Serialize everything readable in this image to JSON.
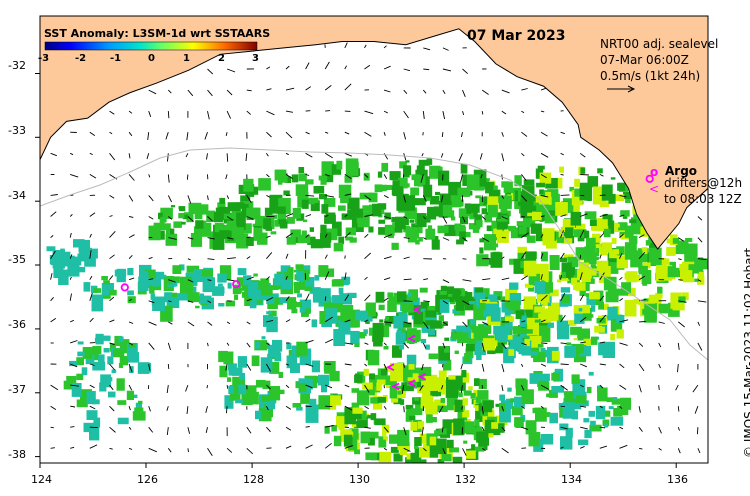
{
  "date": "07 Mar 2023",
  "title": "SST Anomaly: L3SM-1d wrt SSTAARS",
  "colorbar_ticks": [
    "-3",
    "-2",
    "-1",
    "0",
    "1",
    "2",
    "3"
  ],
  "colorbar_colors": [
    "#00007f",
    "#0000ff",
    "#0066ff",
    "#00ccff",
    "#33ffcc",
    "#99ff66",
    "#ffff00",
    "#ff9900",
    "#ff3300",
    "#7f0000"
  ],
  "legend": {
    "current_title": "NRT00 adj. sealevel",
    "current_time": "07-Mar 06:00Z",
    "current_scale": "0.5m/s (1kt 24h)",
    "argo_symbol": "o",
    "argo_label": "Argo",
    "drifter_symbol": "<",
    "drifters_line1": "drifters@12h",
    "drifters_line2": "to 08:03 12Z"
  },
  "credit": "© IMOS 15-Mar-2023 11:02 Hobart",
  "axes": {
    "lat_ticks": [
      "-32",
      "-33",
      "-34",
      "-35",
      "-36",
      "-37",
      "-38"
    ],
    "lon_ticks": [
      "124",
      "126",
      "128",
      "130",
      "132",
      "134",
      "136"
    ],
    "lat_range": [
      -38.1,
      -31.1
    ],
    "lon_range": [
      124,
      136.6
    ]
  },
  "colors": {
    "land": "#fdc99a",
    "sea": "#ffffff",
    "anomaly_main": "#2bc42b",
    "anomaly_dark": "#18a218",
    "anomaly_cyan": "#1fbfa6",
    "anomaly_yellow": "#c8f000",
    "argo": "#ff00ff",
    "shelf_contour": "#bbbbbb"
  },
  "argo_floats": [
    {
      "lon": 125.6,
      "lat": -35.35
    },
    {
      "lon": 127.7,
      "lat": -35.3
    },
    {
      "lon": 135.5,
      "lat": -33.65
    }
  ],
  "drifters": [
    {
      "lon": 131.1,
      "lat": -35.7
    },
    {
      "lon": 131.0,
      "lat": -36.15
    },
    {
      "lon": 130.6,
      "lat": -36.6
    },
    {
      "lon": 130.7,
      "lat": -36.9
    },
    {
      "lon": 131.0,
      "lat": -36.85
    },
    {
      "lon": 131.2,
      "lat": -36.75
    }
  ],
  "coastline": [
    [
      124.0,
      -33.35
    ],
    [
      124.2,
      -33.0
    ],
    [
      124.5,
      -32.75
    ],
    [
      124.9,
      -32.7
    ],
    [
      125.3,
      -32.45
    ],
    [
      125.7,
      -32.3
    ],
    [
      126.2,
      -32.15
    ],
    [
      126.8,
      -31.95
    ],
    [
      127.4,
      -31.7
    ],
    [
      128.0,
      -31.65
    ],
    [
      128.6,
      -31.6
    ],
    [
      129.2,
      -31.55
    ],
    [
      129.7,
      -31.5
    ],
    [
      130.3,
      -31.5
    ],
    [
      130.9,
      -31.55
    ],
    [
      131.5,
      -31.4
    ],
    [
      131.9,
      -31.3
    ],
    [
      132.2,
      -31.5
    ],
    [
      132.6,
      -31.85
    ],
    [
      133.0,
      -32.05
    ],
    [
      133.5,
      -32.2
    ],
    [
      133.85,
      -32.45
    ],
    [
      134.15,
      -32.8
    ],
    [
      134.2,
      -33.0
    ],
    [
      134.55,
      -33.2
    ],
    [
      134.8,
      -33.4
    ],
    [
      135.1,
      -33.8
    ],
    [
      135.25,
      -34.2
    ],
    [
      135.45,
      -34.5
    ],
    [
      135.65,
      -34.75
    ],
    [
      135.85,
      -34.55
    ],
    [
      136.05,
      -34.35
    ],
    [
      136.2,
      -34.1
    ],
    [
      136.6,
      -33.8
    ]
  ]
}
